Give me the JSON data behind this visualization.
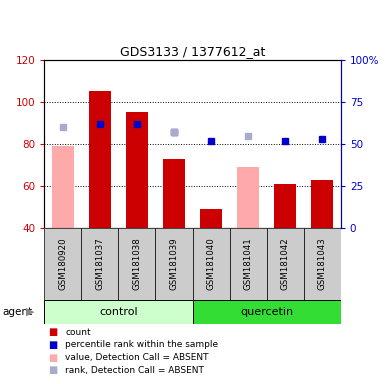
{
  "title": "GDS3133 / 1377612_at",
  "samples": [
    "GSM180920",
    "GSM181037",
    "GSM181038",
    "GSM181039",
    "GSM181040",
    "GSM181041",
    "GSM181042",
    "GSM181043"
  ],
  "count_values": [
    null,
    105,
    95,
    73,
    49,
    null,
    61,
    63
  ],
  "count_absent": [
    79,
    null,
    null,
    null,
    null,
    69,
    null,
    null
  ],
  "rank_values_pct": [
    null,
    62,
    62,
    57,
    52,
    null,
    52,
    53
  ],
  "rank_absent_pct": [
    60,
    null,
    null,
    57,
    null,
    55,
    null,
    null
  ],
  "ylim_left": [
    40,
    120
  ],
  "ylim_right": [
    0,
    100
  ],
  "left_ticks": [
    40,
    60,
    80,
    100,
    120
  ],
  "right_ticks": [
    0,
    25,
    50,
    75,
    100
  ],
  "right_tick_labels": [
    "0",
    "25",
    "50",
    "75",
    "100%"
  ],
  "color_count": "#cc0000",
  "color_rank": "#0000cc",
  "color_count_absent": "#ffaaaa",
  "color_rank_absent": "#aaaacc",
  "control_color": "#ccffcc",
  "quercetin_color": "#33dd33",
  "sample_box_color": "#cccccc"
}
